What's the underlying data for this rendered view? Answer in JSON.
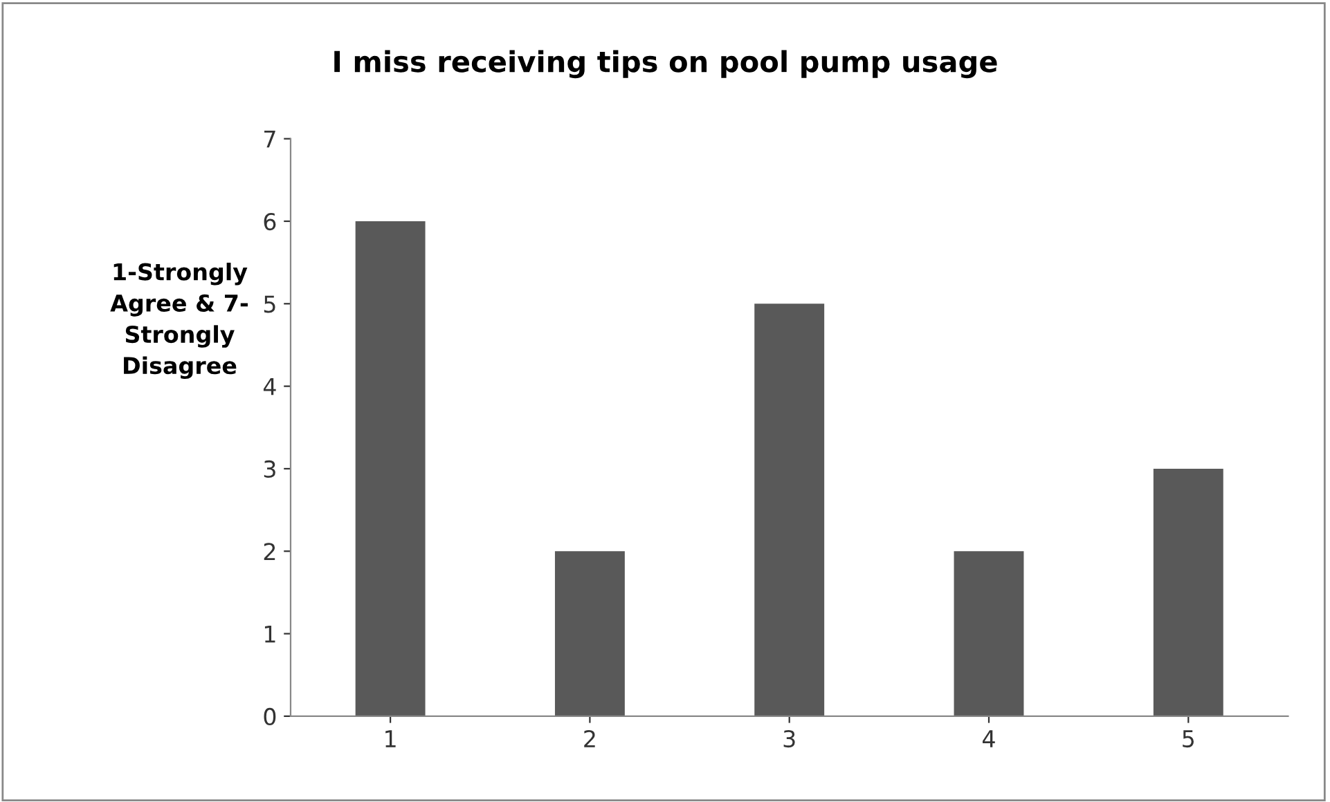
{
  "chart_data": {
    "type": "bar",
    "title": "I miss receiving tips on pool pump usage",
    "ylabel": "1-Strongly\nAgree & 7-\nStrongly\nDisagree",
    "categories": [
      "1",
      "2",
      "3",
      "4",
      "5"
    ],
    "values": [
      6,
      2,
      5,
      2,
      3
    ],
    "color": "#595959",
    "ylim": [
      0,
      7
    ],
    "yticks": [
      0,
      1,
      2,
      3,
      4,
      5,
      6,
      7
    ],
    "grid": false,
    "legend": false
  }
}
